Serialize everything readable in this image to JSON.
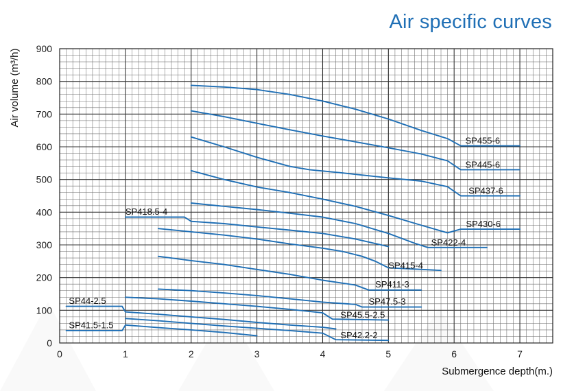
{
  "chart_data": {
    "type": "line",
    "title": "Air specific curves",
    "xlabel": "Submergence depth(m.)",
    "ylabel": "Air volume (m³/h)",
    "xlim": [
      0,
      7.5
    ],
    "ylim": [
      0,
      900
    ],
    "x_ticks": [
      "0",
      "1",
      "2",
      "3",
      "4",
      "5",
      "6",
      "7"
    ],
    "y_ticks": [
      "0",
      "100",
      "200",
      "300",
      "400",
      "500",
      "600",
      "700",
      "800",
      "900"
    ],
    "grid": true,
    "line_color": "#1f6fb5",
    "series": [
      {
        "name": "SP455-6",
        "points": [
          [
            2,
            788
          ],
          [
            2.5,
            783
          ],
          [
            3,
            775
          ],
          [
            3.5,
            760
          ],
          [
            4,
            740
          ],
          [
            4.5,
            715
          ],
          [
            5,
            685
          ],
          [
            5.5,
            650
          ],
          [
            5.9,
            625
          ],
          [
            6.1,
            603
          ],
          [
            7,
            603
          ]
        ]
      },
      {
        "name": "SP445-6",
        "points": [
          [
            2,
            710
          ],
          [
            2.5,
            692
          ],
          [
            3,
            672
          ],
          [
            3.5,
            652
          ],
          [
            4,
            633
          ],
          [
            4.5,
            615
          ],
          [
            5,
            597
          ],
          [
            5.5,
            578
          ],
          [
            5.9,
            557
          ],
          [
            6.1,
            530
          ],
          [
            7,
            530
          ]
        ]
      },
      {
        "name": "SP437-6",
        "points": [
          [
            2,
            630
          ],
          [
            2.5,
            600
          ],
          [
            3,
            568
          ],
          [
            3.5,
            540
          ],
          [
            3.8,
            530
          ],
          [
            4.3,
            520
          ],
          [
            5,
            505
          ],
          [
            5.5,
            495
          ],
          [
            5.9,
            478
          ],
          [
            6.1,
            450
          ],
          [
            7,
            450
          ]
        ]
      },
      {
        "name": "SP430-6",
        "points": [
          [
            2,
            527
          ],
          [
            2.5,
            500
          ],
          [
            3,
            477
          ],
          [
            3.5,
            460
          ],
          [
            4,
            440
          ],
          [
            4.5,
            418
          ],
          [
            5,
            390
          ],
          [
            5.5,
            360
          ],
          [
            5.9,
            337
          ],
          [
            6.1,
            348
          ],
          [
            7,
            348
          ]
        ]
      },
      {
        "name": "SP422-4",
        "points": [
          [
            2,
            428
          ],
          [
            2.5,
            418
          ],
          [
            3,
            408
          ],
          [
            3.5,
            397
          ],
          [
            4,
            385
          ],
          [
            4.5,
            365
          ],
          [
            5,
            335
          ],
          [
            5.4,
            305
          ],
          [
            5.6,
            292
          ],
          [
            6.5,
            292
          ]
        ]
      },
      {
        "name": "SP418.5-4",
        "points": [
          [
            1,
            385
          ],
          [
            1.8,
            385
          ],
          [
            1.9,
            385
          ],
          [
            2,
            372
          ],
          [
            2.5,
            365
          ],
          [
            3,
            355
          ],
          [
            3.5,
            345
          ],
          [
            4,
            335
          ],
          [
            4.5,
            318
          ],
          [
            5,
            295
          ]
        ]
      },
      {
        "name": "SP415-4",
        "points": [
          [
            1.5,
            350
          ],
          [
            2,
            340
          ],
          [
            2.5,
            330
          ],
          [
            3,
            318
          ],
          [
            3.5,
            303
          ],
          [
            4,
            290
          ],
          [
            4.3,
            280
          ],
          [
            4.6,
            265
          ],
          [
            4.8,
            250
          ],
          [
            5,
            230
          ],
          [
            5.8,
            222
          ]
        ]
      },
      {
        "name": "SP411-3",
        "points": [
          [
            1.5,
            265
          ],
          [
            2,
            252
          ],
          [
            2.5,
            240
          ],
          [
            3,
            225
          ],
          [
            3.5,
            210
          ],
          [
            4,
            192
          ],
          [
            4.5,
            177
          ],
          [
            4.7,
            162
          ],
          [
            5.5,
            162
          ]
        ]
      },
      {
        "name": "SP47.5-3",
        "points": [
          [
            1.5,
            165
          ],
          [
            2,
            160
          ],
          [
            2.5,
            153
          ],
          [
            3,
            145
          ],
          [
            3.5,
            135
          ],
          [
            4,
            125
          ],
          [
            4.5,
            118
          ],
          [
            4.6,
            110
          ],
          [
            5.5,
            110
          ]
        ]
      },
      {
        "name": "SP44-2.5",
        "points": [
          [
            0.1,
            112
          ],
          [
            0.95,
            112
          ],
          [
            1,
            95
          ],
          [
            1.5,
            88
          ],
          [
            2,
            80
          ],
          [
            2.5,
            72
          ],
          [
            3,
            63
          ],
          [
            3.5,
            55
          ],
          [
            4,
            48
          ],
          [
            4.2,
            43
          ]
        ]
      },
      {
        "name": "SP45.5-2.5",
        "points": [
          [
            1,
            140
          ],
          [
            1.5,
            135
          ],
          [
            2,
            128
          ],
          [
            2.5,
            120
          ],
          [
            3,
            112
          ],
          [
            3.5,
            103
          ],
          [
            4,
            92
          ],
          [
            4.15,
            73
          ],
          [
            5,
            70
          ]
        ]
      },
      {
        "name": "SP41.5-1.5",
        "points": [
          [
            0.1,
            38
          ],
          [
            0.95,
            38
          ],
          [
            1,
            55
          ],
          [
            1.5,
            47
          ],
          [
            2,
            40
          ],
          [
            2.5,
            32
          ],
          [
            3,
            22
          ]
        ]
      },
      {
        "name": "SP42.2-2",
        "points": [
          [
            1,
            75
          ],
          [
            1.5,
            68
          ],
          [
            2,
            60
          ],
          [
            2.5,
            52
          ],
          [
            3,
            45
          ],
          [
            3.5,
            38
          ],
          [
            4,
            30
          ],
          [
            4.2,
            10
          ],
          [
            5,
            8
          ]
        ]
      }
    ],
    "labels": {
      "SP455-6": [
        6.17,
        609
      ],
      "SP445-6": [
        6.17,
        536
      ],
      "SP437-6": [
        6.22,
        456
      ],
      "SP430-6": [
        6.18,
        355
      ],
      "SP422-4": [
        5.65,
        298
      ],
      "SP418.5-4": [
        1.0,
        392
      ],
      "SP415-4": [
        5.0,
        228
      ],
      "SP411-3": [
        4.8,
        170
      ],
      "SP47.5-3": [
        4.7,
        117
      ],
      "SP44-2.5": [
        0.14,
        120
      ],
      "SP45.5-2.5": [
        4.27,
        77
      ],
      "SP41.5-1.5": [
        0.14,
        45
      ],
      "SP42.2-2": [
        4.27,
        15
      ]
    }
  }
}
